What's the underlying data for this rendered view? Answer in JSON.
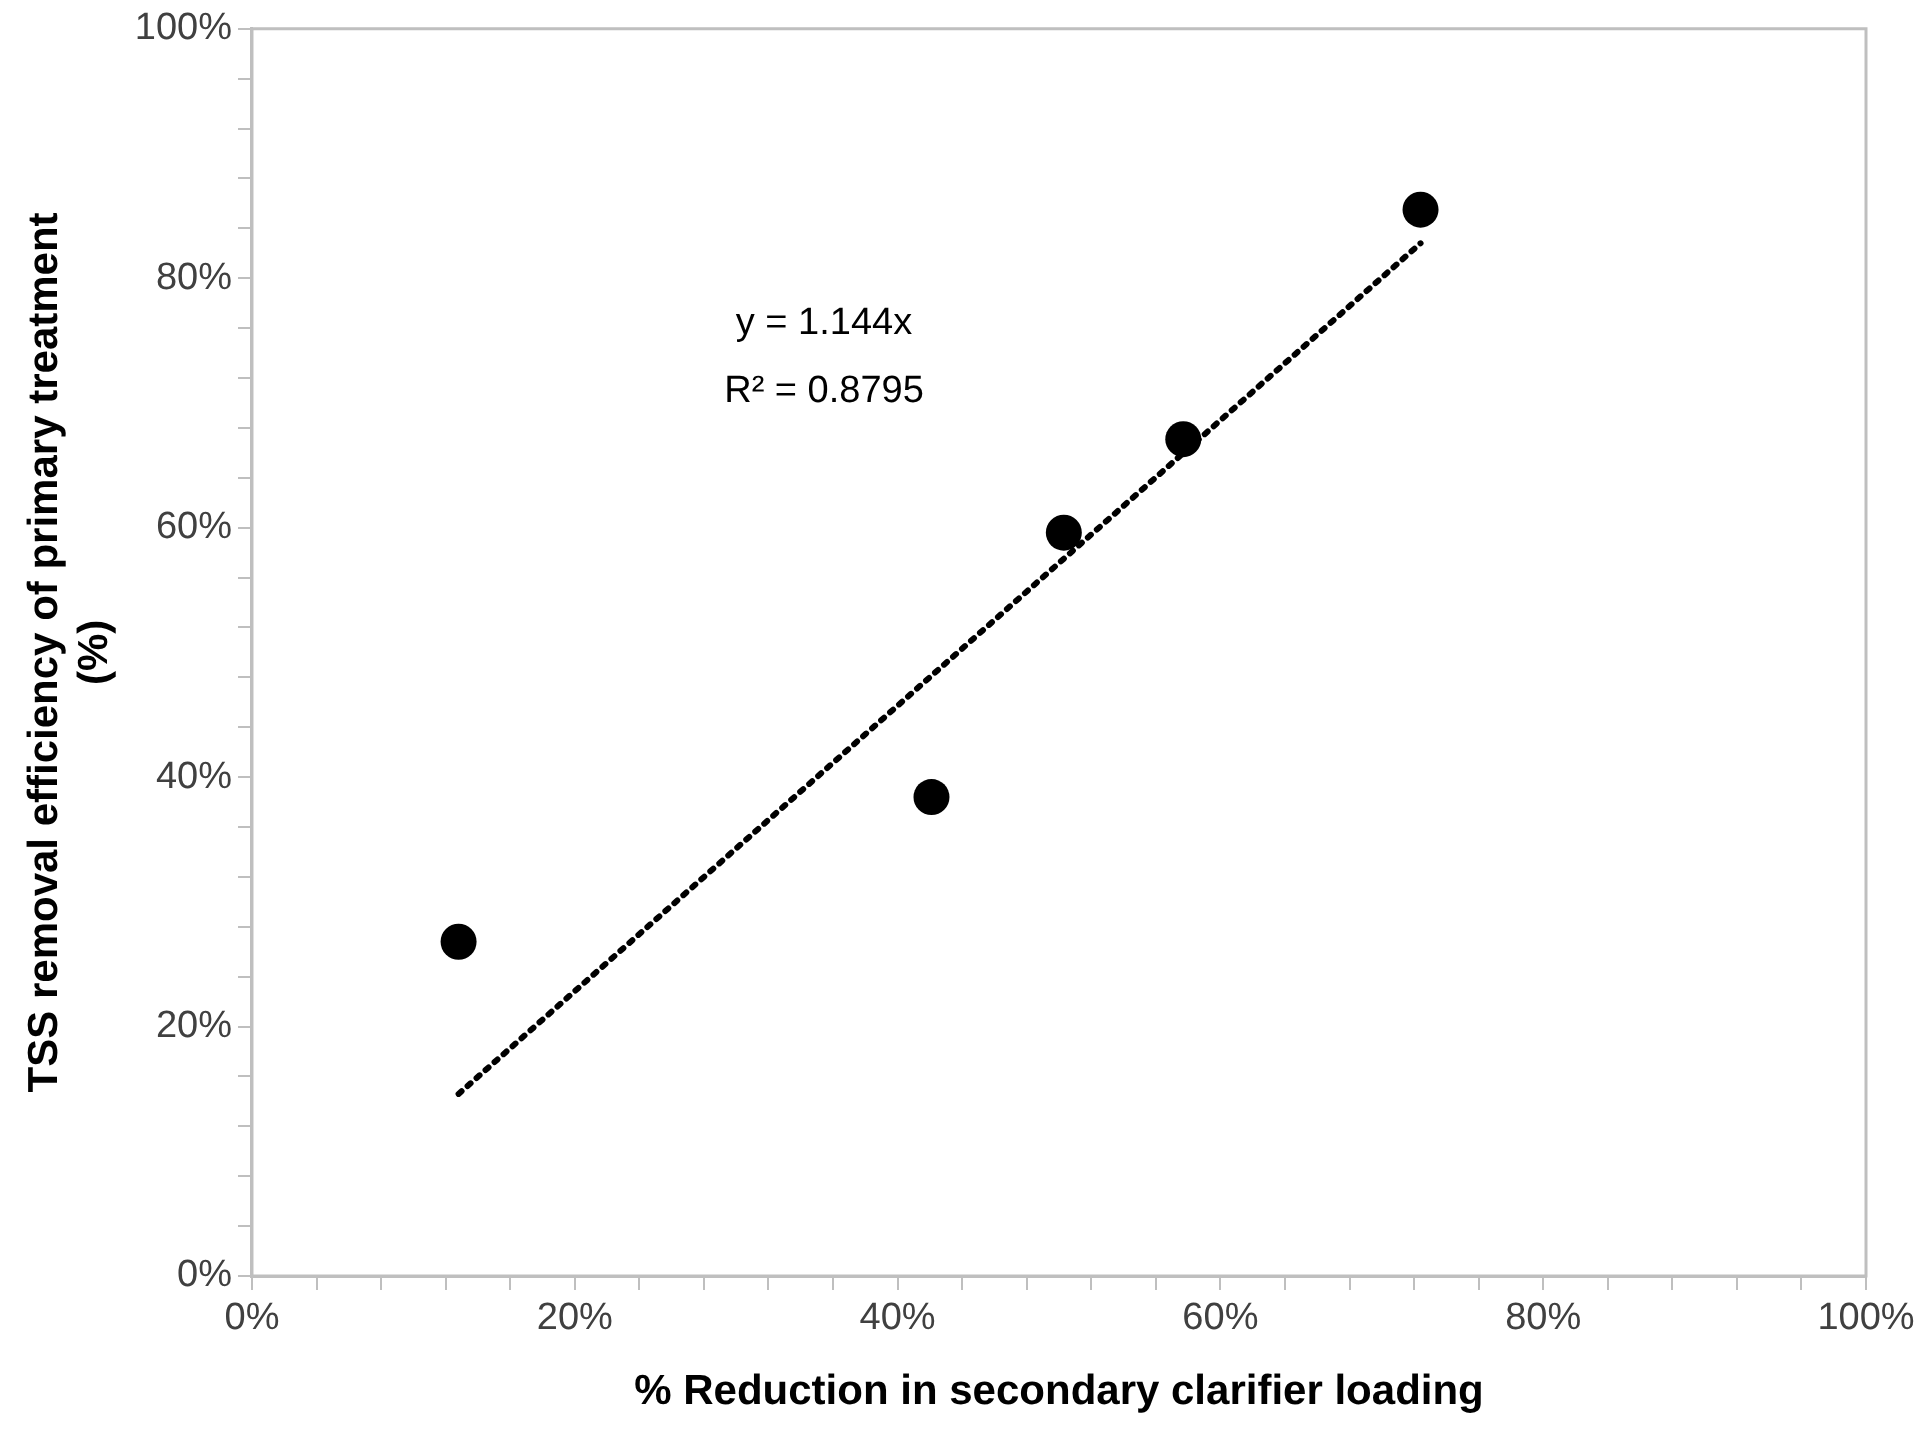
{
  "chart_data": {
    "type": "scatter",
    "xlabel": "% Reduction in secondary clarifier loading",
    "ylabel": "TSS removal efficiency of primary treatment (%)",
    "annotations": [
      "y = 1.144x",
      "R² = 0.8795"
    ],
    "series": [
      {
        "color": "#000000",
        "marker": "circle",
        "x": [
          12.8,
          42.1,
          50.3,
          57.7,
          72.4
        ],
        "values": [
          26.8,
          38.4,
          59.6,
          67.1,
          85.5
        ]
      },
      {
        "type": "line",
        "color": "#000000",
        "marker": "none",
        "line_style": "dotted",
        "x": [
          12.8,
          72.4
        ],
        "values": [
          14.6,
          82.8
        ]
      }
    ],
    "xlim": [
      0,
      100
    ],
    "ylim": [
      0,
      100
    ],
    "xticks": [
      {
        "value": 0,
        "label": "0%"
      },
      {
        "value": 4,
        "label": null
      },
      {
        "value": 8,
        "label": null
      },
      {
        "value": 12,
        "label": null
      },
      {
        "value": 16,
        "label": null
      },
      {
        "value": 20,
        "label": "20%"
      },
      {
        "value": 24,
        "label": null
      },
      {
        "value": 28,
        "label": null
      },
      {
        "value": 32,
        "label": null
      },
      {
        "value": 36,
        "label": null
      },
      {
        "value": 40,
        "label": "40%"
      },
      {
        "value": 44,
        "label": null
      },
      {
        "value": 48,
        "label": null
      },
      {
        "value": 52,
        "label": null
      },
      {
        "value": 56,
        "label": null
      },
      {
        "value": 60,
        "label": "60%"
      },
      {
        "value": 64,
        "label": null
      },
      {
        "value": 68,
        "label": null
      },
      {
        "value": 72,
        "label": null
      },
      {
        "value": 76,
        "label": null
      },
      {
        "value": 80,
        "label": "80%"
      },
      {
        "value": 84,
        "label": null
      },
      {
        "value": 88,
        "label": null
      },
      {
        "value": 92,
        "label": null
      },
      {
        "value": 96,
        "label": null
      },
      {
        "value": 100,
        "label": "100%"
      }
    ],
    "yticks": [
      {
        "value": 0,
        "label": "0%"
      },
      {
        "value": 4,
        "label": null
      },
      {
        "value": 8,
        "label": null
      },
      {
        "value": 12,
        "label": null
      },
      {
        "value": 16,
        "label": null
      },
      {
        "value": 20,
        "label": "20%"
      },
      {
        "value": 24,
        "label": null
      },
      {
        "value": 28,
        "label": null
      },
      {
        "value": 32,
        "label": null
      },
      {
        "value": 36,
        "label": null
      },
      {
        "value": 40,
        "label": "40%"
      },
      {
        "value": 44,
        "label": null
      },
      {
        "value": 48,
        "label": null
      },
      {
        "value": 52,
        "label": null
      },
      {
        "value": 56,
        "label": null
      },
      {
        "value": 60,
        "label": "60%"
      },
      {
        "value": 64,
        "label": null
      },
      {
        "value": 68,
        "label": null
      },
      {
        "value": 72,
        "label": null
      },
      {
        "value": 76,
        "label": null
      },
      {
        "value": 80,
        "label": "80%"
      },
      {
        "value": 84,
        "label": null
      },
      {
        "value": 88,
        "label": null
      },
      {
        "value": 92,
        "label": null
      },
      {
        "value": 96,
        "label": null
      },
      {
        "value": 100,
        "label": "100%"
      }
    ],
    "grid": false,
    "legend": false
  }
}
